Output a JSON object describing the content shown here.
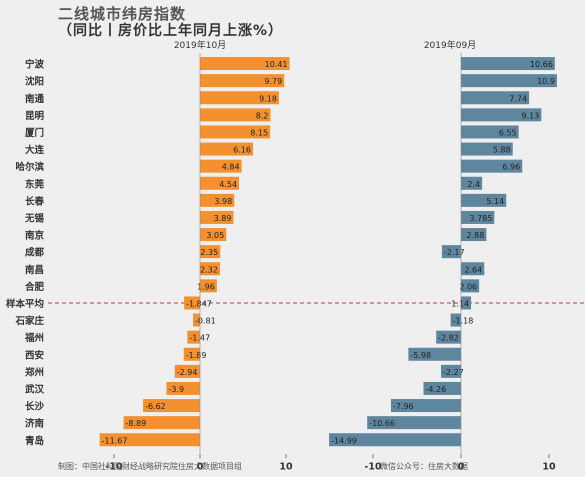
{
  "title": "二线城市纬房指数",
  "subtitle": "（同比丨房价比上年同月上涨%）",
  "source": "制图：中国社科院财经战略研究院住房大数据项目组",
  "wechat": "微信公众号：住房大数据",
  "colors": {
    "oct": "#f39130",
    "sep": "#5f869f",
    "bg": "#efefef",
    "reference": "#b04040"
  },
  "chart_data": {
    "type": "bar",
    "orientation": "horizontal",
    "categories": [
      "宁波",
      "沈阳",
      "南通",
      "昆明",
      "厦门",
      "大连",
      "哈尔滨",
      "东莞",
      "长春",
      "无锡",
      "南京",
      "成都",
      "南昌",
      "合肥",
      "样本平均",
      "石家庄",
      "福州",
      "西安",
      "郑州",
      "武汉",
      "长沙",
      "济南",
      "青岛"
    ],
    "series": [
      {
        "name": "2019年10月",
        "color": "#f39130",
        "values": [
          10.41,
          9.79,
          9.18,
          8.2,
          8.15,
          6.16,
          4.84,
          4.54,
          3.98,
          3.89,
          3.05,
          2.35,
          2.32,
          1.96,
          -1.847,
          -0.81,
          -1.47,
          -1.89,
          -2.94,
          -3.9,
          -6.62,
          -8.89,
          -11.67
        ]
      },
      {
        "name": "2019年09月",
        "color": "#5f869f",
        "values": [
          10.66,
          10.9,
          7.74,
          9.13,
          6.55,
          5.88,
          6.96,
          2.4,
          5.14,
          3.785,
          2.88,
          -2.17,
          2.64,
          2.06,
          1.14,
          -1.18,
          -2.82,
          -5.98,
          -2.27,
          -4.26,
          -7.96,
          -10.66,
          -14.99
        ]
      }
    ],
    "labels": [
      [
        "10.41",
        "9.79",
        "9.18",
        "8.2",
        "8.15",
        "6.16",
        "4.84",
        "4.54",
        "3.98",
        "3.89",
        "3.05",
        "2.35",
        "2.32",
        "1.96",
        "-1.847",
        "-0.81",
        "-1.47",
        "-1.89",
        "-2.94",
        "-3.9",
        "-6.62",
        "-8.89",
        "-11.67"
      ],
      [
        "10.66",
        "10.9",
        "7.74",
        "9.13",
        "6.55",
        "5.88",
        "6.96",
        "2.4",
        "5.14",
        "3.785",
        "2.88",
        "-2.17",
        "2.64",
        "2.06",
        "1.14",
        "-1.18",
        "-2.82",
        "-5.98",
        "-2.27",
        "-4.26",
        "-7.96",
        "-10.66",
        "-14.99"
      ]
    ],
    "xticks": [
      -10,
      0,
      10
    ],
    "xlim": [
      -15,
      11.5
    ],
    "reference_category": "样本平均",
    "grid": false
  }
}
